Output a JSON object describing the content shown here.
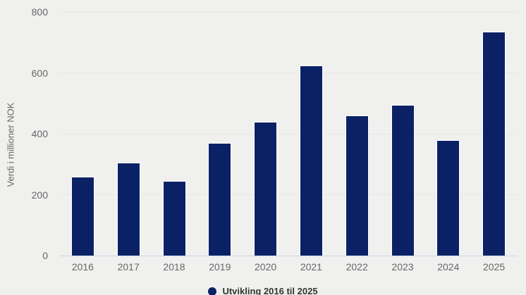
{
  "chart": {
    "background_color": "#f0f1ef",
    "bar_color": "#0b2166",
    "bar_border_color": "#ffffff",
    "gridline_color": "#e6e6e6",
    "axis_line_color": "#ccd6eb",
    "tick_label_color": "#666666",
    "legend_text_color": "#333333"
  },
  "chart_data": {
    "type": "bar",
    "title": "",
    "categories": [
      "2016",
      "2017",
      "2018",
      "2019",
      "2020",
      "2021",
      "2022",
      "2023",
      "2024",
      "2025"
    ],
    "series": [
      {
        "name": "Utvikling 2016 til 2025",
        "values": [
          260,
          305,
          245,
          370,
          440,
          625,
          460,
          495,
          380,
          735
        ]
      }
    ],
    "xlabel": "",
    "ylabel": "Verdi i millioner NOK",
    "ylim": [
      0,
      800
    ],
    "yticks": [
      0,
      200,
      400,
      600,
      800
    ],
    "grid": true,
    "legend_position": "bottom-center"
  }
}
